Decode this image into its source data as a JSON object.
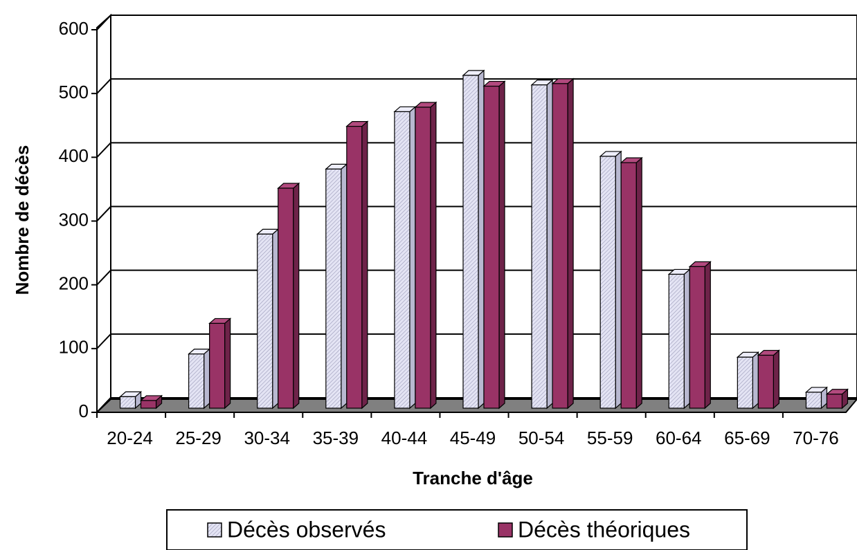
{
  "chart_data": {
    "type": "bar3d",
    "x_label": "Tranche d'âge",
    "y_label": "Nombre de décès",
    "categories": [
      "20-24",
      "25-29",
      "30-34",
      "35-39",
      "40-44",
      "45-49",
      "50-54",
      "55-59",
      "60-64",
      "65-69",
      "70-76"
    ],
    "series": [
      {
        "name": "Décès observés",
        "color": "#d6d6ee",
        "values": [
          18,
          85,
          273,
          375,
          465,
          522,
          507,
          395,
          210,
          80,
          25
        ]
      },
      {
        "name": "Décès théoriques",
        "color": "#993366",
        "values": [
          12,
          133,
          345,
          442,
          472,
          505,
          509,
          385,
          222,
          83,
          22
        ]
      }
    ],
    "ylim": [
      0,
      600
    ],
    "yticks": [
      0,
      100,
      200,
      300,
      400,
      500,
      600
    ],
    "grid": true
  }
}
